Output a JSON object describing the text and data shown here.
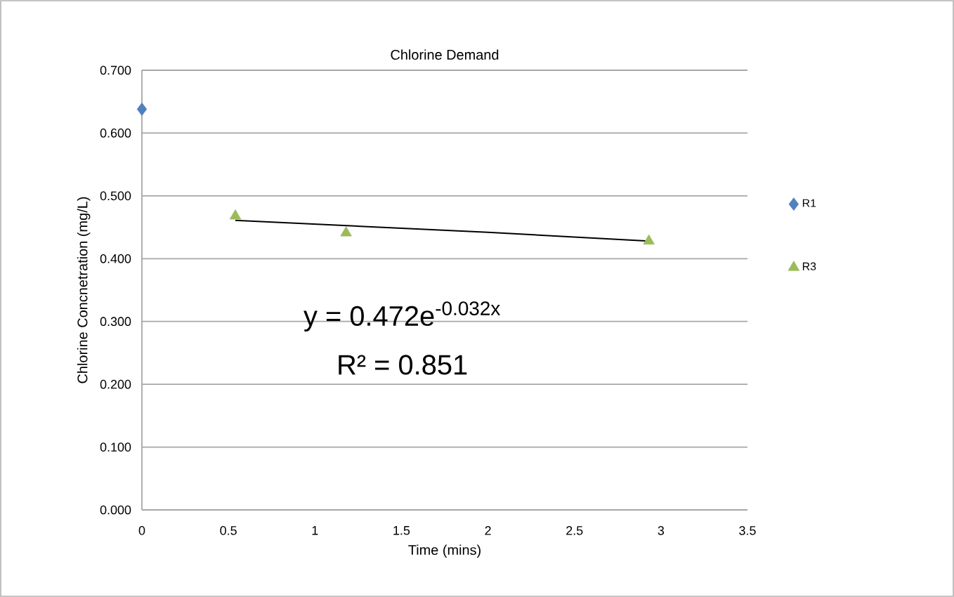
{
  "chart_data": {
    "type": "scatter",
    "title": "Chlorine Demand",
    "xlabel": "Time (mins)",
    "ylabel": "Chlorine Concnetration (mg/L)",
    "series": [
      {
        "name": "R1",
        "color": "#4f81bd",
        "marker": "diamond",
        "x": [
          0
        ],
        "values": [
          0.638
        ]
      },
      {
        "name": "R3",
        "color": "#9bbb59",
        "marker": "triangle",
        "x": [
          0.54,
          1.18,
          2.93
        ],
        "values": [
          0.468,
          0.441,
          0.428
        ]
      },
      {
        "type": "line",
        "color": "#000000",
        "marker": "none",
        "x": [
          0.54,
          2.0,
          2.93
        ],
        "values": [
          0.461,
          0.442,
          0.428
        ]
      }
    ],
    "annotations": [
      "y = 0.472e$^{-0.032x}$",
      "R² = 0.851"
    ],
    "xlim": [
      0,
      3.5
    ],
    "xticks": [
      0,
      0.5,
      1,
      1.5,
      2,
      2.5,
      3,
      3.5
    ],
    "ylim": [
      0,
      0.7
    ],
    "yticks": [
      {
        "value": 0,
        "label": "0.000"
      },
      {
        "value": 0.1,
        "label": "0.100"
      },
      {
        "value": 0.2,
        "label": "0.200"
      },
      {
        "value": 0.3,
        "label": "0.300"
      },
      {
        "value": 0.4,
        "label": "0.400"
      },
      {
        "value": 0.5,
        "label": "0.500"
      },
      {
        "value": 0.6,
        "label": "0.600"
      },
      {
        "value": 0.7,
        "label": "0.700"
      }
    ],
    "grid": "y",
    "legend": "right"
  }
}
